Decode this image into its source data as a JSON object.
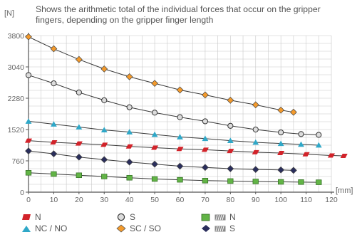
{
  "caption": "Shows the arithmetic total of the individual forces that occur on the gripper fingers, depending on the gripper finger length",
  "chart_data": {
    "type": "line",
    "ylabel": "[N]",
    "xlabel": "[mm]",
    "xlim": [
      0,
      120
    ],
    "ylim": [
      0,
      3800
    ],
    "x_ticks": [
      "0",
      "10",
      "20",
      "30",
      "40",
      "50",
      "60",
      "70",
      "80",
      "90",
      "100",
      "110",
      "120"
    ],
    "y_ticks": [
      "0",
      "760",
      "1520",
      "2280",
      "3040",
      "3800"
    ],
    "grid": true,
    "series": [
      {
        "name": "SC / SO",
        "marker": "diamond",
        "fill": "#f39a2c",
        "x": [
          0,
          10,
          20,
          30,
          40,
          50,
          60,
          70,
          80,
          90,
          100,
          105
        ],
        "y": [
          3770,
          3480,
          3220,
          2990,
          2800,
          2640,
          2480,
          2360,
          2230,
          2120,
          1990,
          1940
        ]
      },
      {
        "name": "S",
        "marker": "circle",
        "fill": "#dcdcdc",
        "x": [
          0,
          10,
          20,
          30,
          40,
          50,
          60,
          70,
          80,
          90,
          100,
          108,
          115
        ],
        "y": [
          2840,
          2640,
          2420,
          2230,
          2060,
          1930,
          1820,
          1720,
          1610,
          1520,
          1450,
          1410,
          1390
        ]
      },
      {
        "name": "NC / NO",
        "marker": "triangle",
        "fill": "#2fa8c8",
        "x": [
          0,
          10,
          20,
          30,
          40,
          50,
          60,
          70,
          80,
          90,
          100,
          108,
          115
        ],
        "y": [
          1720,
          1650,
          1580,
          1510,
          1460,
          1400,
          1340,
          1300,
          1250,
          1210,
          1180,
          1160,
          1140
        ]
      },
      {
        "name": "N",
        "marker": "parallelogram",
        "fill": "#d2232a",
        "x": [
          0,
          10,
          20,
          30,
          40,
          50,
          60,
          70,
          80,
          90,
          100,
          110,
          120,
          125
        ],
        "y": [
          1250,
          1210,
          1180,
          1150,
          1110,
          1080,
          1050,
          1030,
          1000,
          970,
          950,
          920,
          890,
          880
        ]
      },
      {
        "name": "N",
        "marker": "square",
        "fill": "#62b446",
        "prefix_icon": "spring-icon",
        "x": [
          0,
          10,
          20,
          30,
          40,
          50,
          60,
          70,
          80,
          90,
          100,
          108,
          115
        ],
        "y": [
          470,
          440,
          410,
          380,
          350,
          320,
          300,
          280,
          270,
          260,
          250,
          245,
          240
        ]
      },
      {
        "name": "S",
        "marker": "diamond",
        "fill": "#2a2e5c",
        "prefix_icon": "spring-icon",
        "x": [
          0,
          10,
          20,
          30,
          40,
          50,
          60,
          70,
          80,
          90,
          100,
          105
        ],
        "y": [
          1000,
          930,
          850,
          790,
          730,
          680,
          630,
          600,
          570,
          550,
          540,
          530
        ]
      }
    ]
  }
}
